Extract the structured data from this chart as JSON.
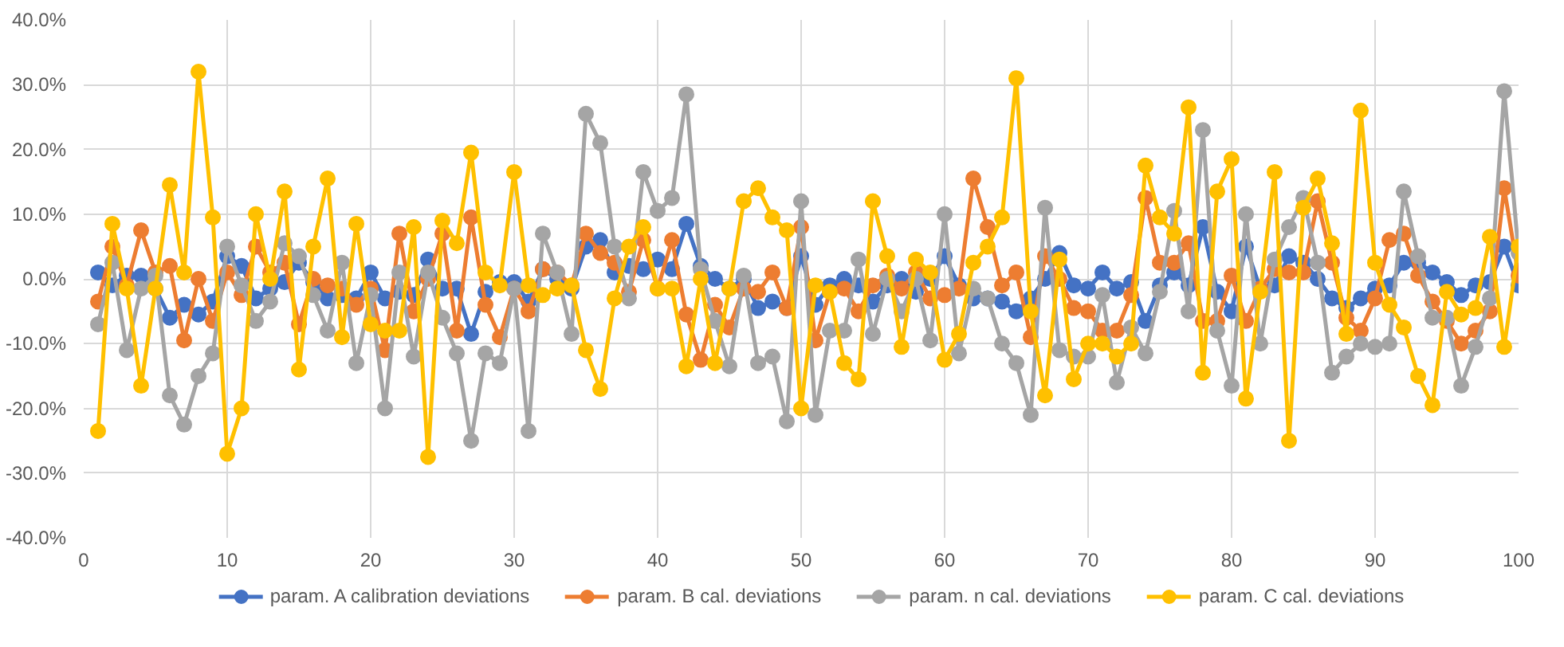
{
  "chart_data": {
    "type": "line",
    "x": [
      1,
      2,
      3,
      4,
      5,
      6,
      7,
      8,
      9,
      10,
      11,
      12,
      13,
      14,
      15,
      16,
      17,
      18,
      19,
      20,
      21,
      22,
      23,
      24,
      25,
      26,
      27,
      28,
      29,
      30,
      31,
      32,
      33,
      34,
      35,
      36,
      37,
      38,
      39,
      40,
      41,
      42,
      43,
      44,
      45,
      46,
      47,
      48,
      49,
      50,
      51,
      52,
      53,
      54,
      55,
      56,
      57,
      58,
      59,
      60,
      61,
      62,
      63,
      64,
      65,
      66,
      67,
      68,
      69,
      70,
      71,
      72,
      73,
      74,
      75,
      76,
      77,
      78,
      79,
      80,
      81,
      82,
      83,
      84,
      85,
      86,
      87,
      88,
      89,
      90,
      91,
      92,
      93,
      94,
      95,
      96,
      97,
      98,
      99,
      100
    ],
    "series": [
      {
        "name": "param. A calibration deviations",
        "color": "#4472c4",
        "values": [
          1,
          -1,
          0.5,
          0.5,
          -1.5,
          -6,
          -4,
          -5.5,
          -3.5,
          3.5,
          2,
          -3,
          -1.5,
          -0.5,
          2.5,
          -0.5,
          -3,
          -2.5,
          -3,
          1,
          -3,
          -2,
          -2.5,
          3,
          -1.5,
          -1.5,
          -8.5,
          -2,
          -0.5,
          -0.5,
          -3.5,
          1.5,
          0,
          -1.5,
          5,
          6,
          1,
          2,
          1.5,
          3,
          1.5,
          8.5,
          2,
          0,
          -1.5,
          0,
          -4.5,
          -3.5,
          -4.5,
          3.5,
          -4,
          -1,
          0,
          -1,
          -3.5,
          -1,
          0,
          -2,
          0,
          3.5,
          -1,
          -3,
          -3,
          -3.5,
          -5,
          -3,
          0,
          4,
          -1,
          -1.5,
          1,
          -1.5,
          -0.5,
          -6.5,
          -1,
          1,
          -1,
          8,
          -2,
          -5,
          5,
          -1.5,
          -1,
          3.5,
          2.5,
          0,
          -3,
          -4.5,
          -3,
          -1.5,
          -1,
          2.5,
          2.5,
          1,
          -0.5,
          -2.5,
          -1,
          -0.5,
          5,
          -1
        ]
      },
      {
        "name": "param. B cal. deviations",
        "color": "#ed7d31",
        "values": [
          -3.5,
          5,
          -1,
          7.5,
          1,
          2,
          -9.5,
          0,
          -6.5,
          1,
          -2.5,
          5,
          1,
          2.5,
          -7,
          0,
          -1,
          -1.5,
          -4,
          -1.5,
          -11,
          7,
          -5,
          0,
          7,
          -8,
          9.5,
          -4,
          -9,
          -1.5,
          -5,
          1.5,
          1,
          -1,
          7,
          4,
          2.5,
          -2,
          6,
          -1.5,
          6,
          -5.5,
          -12.5,
          -4,
          -7.5,
          -1.5,
          -2,
          1,
          -4.5,
          8,
          -9.5,
          -2,
          -1.5,
          -5,
          -1,
          0.5,
          -1.5,
          1,
          -3,
          -2.5,
          -1.5,
          15.5,
          8,
          -1,
          1,
          -9,
          3.5,
          0,
          -4.5,
          -5,
          -8,
          -8,
          -2.5,
          12.5,
          2.5,
          2.5,
          5.5,
          -6.5,
          -6.5,
          0.5,
          -6.5,
          -1.5,
          1.5,
          1,
          1,
          12,
          2.5,
          -6,
          -8,
          -3,
          6,
          7,
          0.5,
          -3.5,
          -6.5,
          -10,
          -8,
          -5,
          14,
          0.5
        ]
      },
      {
        "name": "param. n cal. deviations",
        "color": "#a5a5a5",
        "values": [
          -7,
          2.5,
          -11,
          -1.5,
          0.5,
          -18,
          -22.5,
          -15,
          -11.5,
          5,
          -1,
          -6.5,
          -3.5,
          5.5,
          3.5,
          -2.5,
          -8,
          2.5,
          -13,
          -2.5,
          -20,
          1,
          -12,
          1,
          -6,
          -11.5,
          -25,
          -11.5,
          -13,
          -1.5,
          -23.5,
          7,
          1,
          -8.5,
          25.5,
          21,
          5,
          -3,
          16.5,
          10.5,
          12.5,
          28.5,
          1.5,
          -6.5,
          -13.5,
          0.5,
          -13,
          -12,
          -22,
          12,
          -21,
          -8,
          -8,
          3,
          -8.5,
          0,
          -5,
          0,
          -9.5,
          10,
          -11.5,
          -1.5,
          -3,
          -10,
          -13,
          -21,
          11,
          -11,
          -12,
          -12,
          -2.5,
          -16,
          -7.5,
          -11.5,
          -2,
          10.5,
          -5,
          23,
          -8,
          -16.5,
          10,
          -10,
          3,
          8,
          12.5,
          2.5,
          -14.5,
          -12,
          -10,
          -10.5,
          -10,
          13.5,
          3.5,
          -6,
          -6,
          -16.5,
          -10.5,
          -3,
          29,
          4
        ]
      },
      {
        "name": "param. C cal. deviations",
        "color": "#ffc000",
        "values": [
          -23.5,
          8.5,
          -1.5,
          -16.5,
          -1.5,
          14.5,
          1,
          32,
          9.5,
          -27,
          -20,
          10,
          0,
          13.5,
          -14,
          5,
          15.5,
          -9,
          8.5,
          -7,
          -8,
          -8,
          8,
          -27.5,
          9,
          5.5,
          19.5,
          1,
          -1,
          16.5,
          -1,
          -2.5,
          -1.5,
          -1,
          -11,
          -17,
          -3,
          5,
          8,
          -1.5,
          -1.5,
          -13.5,
          0,
          -13,
          -1.5,
          12,
          14,
          9.5,
          7.5,
          -20,
          -1,
          -2,
          -13,
          -15.5,
          12,
          3.5,
          -10.5,
          3,
          1,
          -12.5,
          -8.5,
          2.5,
          5,
          9.5,
          31,
          -5,
          -18,
          3,
          -15.5,
          -10,
          -10,
          -12,
          -10,
          17.5,
          9.5,
          7,
          26.5,
          -14.5,
          13.5,
          18.5,
          -18.5,
          -2,
          16.5,
          -25,
          11,
          15.5,
          5.5,
          -8.5,
          26,
          2.5,
          -4,
          -7.5,
          -15,
          -19.5,
          -2,
          -5.5,
          -4.5,
          6.5,
          -10.5,
          5
        ]
      }
    ],
    "xlim": [
      0,
      100
    ],
    "xticks": [
      0,
      10,
      20,
      30,
      40,
      50,
      60,
      70,
      80,
      90,
      100
    ],
    "ylim": [
      -40,
      40
    ],
    "yticks": [
      {
        "value": -40,
        "label": "-40.0%"
      },
      {
        "value": -30,
        "label": "-30.0%"
      },
      {
        "value": -20,
        "label": "-20.0%"
      },
      {
        "value": -10,
        "label": "-10.0%"
      },
      {
        "value": 0,
        "label": "0.0%"
      },
      {
        "value": 10,
        "label": "10.0%"
      },
      {
        "value": 20,
        "label": "20.0%"
      },
      {
        "value": 30,
        "label": "30.0%"
      },
      {
        "value": 40,
        "label": "40.0%"
      }
    ],
    "grid": true,
    "legend": "bottom",
    "marker": "circle",
    "line_style": "solid"
  }
}
